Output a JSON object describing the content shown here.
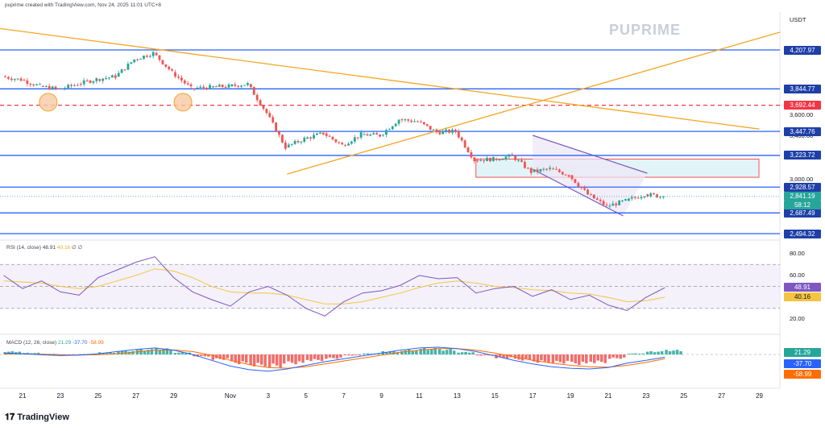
{
  "header": {
    "text": "puprime created with TradingView.com, Nov 24, 2025 11:01 UTC+8"
  },
  "watermark": {
    "brand": "PUPRIME"
  },
  "footer": {
    "brand": "TradingView"
  },
  "currency": "USDT",
  "colors": {
    "up": "#26a69a",
    "down": "#ef5350",
    "level_blue": "#2962ff",
    "level_red": "#f23645",
    "trend_orange": "#f5a623",
    "channel": "#7e57c2",
    "rsi": "#7e57c2",
    "rsi_ma": "#f5c542",
    "macd": "#2962ff",
    "signal": "#ff6d00"
  },
  "chart_data": [
    {
      "type": "candlestick",
      "title": "",
      "x_ticks": [
        "21",
        "23",
        "25",
        "27",
        "29",
        "Nov",
        "3",
        "5",
        "7",
        "9",
        "11",
        "13",
        "15",
        "17",
        "19",
        "21",
        "23",
        "25",
        "27",
        "29"
      ],
      "x_dates": [
        "Oct 21",
        "Oct 23",
        "Oct 25",
        "Oct 27",
        "Oct 29",
        "Nov 1",
        "Nov 3",
        "Nov 5",
        "Nov 7",
        "Nov 9",
        "Nov 11",
        "Nov 13",
        "Nov 15",
        "Nov 17",
        "Nov 19",
        "Nov 21",
        "Nov 23",
        "Nov 25",
        "Nov 27",
        "Nov 29"
      ],
      "y_axis_labels": [
        "3,600.00",
        "3,400.00",
        "3,000.00"
      ],
      "close_path": [
        [
          "Oct 20",
          3960
        ],
        [
          "Oct 21",
          3930
        ],
        [
          "Oct 22",
          3870
        ],
        [
          "Oct 23",
          3840
        ],
        [
          "Oct 24",
          3890
        ],
        [
          "Oct 25",
          3935
        ],
        [
          "Oct 26",
          3960
        ],
        [
          "Oct 27",
          4120
        ],
        [
          "Oct 28",
          4180
        ],
        [
          "Oct 29",
          4000
        ],
        [
          "Oct 30",
          3850
        ],
        [
          "Oct 31",
          3860
        ],
        [
          "Nov 1",
          3870
        ],
        [
          "Nov 2",
          3890
        ],
        [
          "Nov 3",
          3620
        ],
        [
          "Nov 4",
          3300
        ],
        [
          "Nov 5",
          3380
        ],
        [
          "Nov 6",
          3430
        ],
        [
          "Nov 7",
          3320
        ],
        [
          "Nov 8",
          3420
        ],
        [
          "Nov 9",
          3410
        ],
        [
          "Nov 10",
          3560
        ],
        [
          "Nov 11",
          3540
        ],
        [
          "Nov 12",
          3440
        ],
        [
          "Nov 13",
          3450
        ],
        [
          "Nov 14",
          3180
        ],
        [
          "Nov 15",
          3190
        ],
        [
          "Nov 16",
          3220
        ],
        [
          "Nov 17",
          3070
        ],
        [
          "Nov 18",
          3100
        ],
        [
          "Nov 19",
          3040
        ],
        [
          "Nov 20",
          2860
        ],
        [
          "Nov 21",
          2750
        ],
        [
          "Nov 22",
          2800
        ],
        [
          "Nov 23",
          2860
        ],
        [
          "Nov 24",
          2841.19
        ]
      ],
      "horizontal_levels": [
        {
          "value": "4,207.97",
          "style": "solid",
          "color": "blue"
        },
        {
          "value": "3,844.77",
          "style": "solid",
          "color": "blue"
        },
        {
          "value": "3,692.44",
          "style": "dashed",
          "color": "red"
        },
        {
          "value": "3,447.76",
          "style": "solid",
          "color": "blue"
        },
        {
          "value": "3,223.72",
          "style": "solid",
          "color": "blue"
        },
        {
          "value": "2,928.57",
          "style": "solid",
          "color": "blue"
        },
        {
          "value": "2,687.49",
          "style": "solid",
          "color": "blue"
        },
        {
          "value": "2,494.32",
          "style": "solid",
          "color": "blue"
        }
      ],
      "current_price": {
        "value": "2,841.19",
        "countdown": "58:12"
      },
      "trendlines": [
        {
          "name": "descending resistance",
          "from": [
            "Oct 18",
            4450
          ],
          "to": [
            "Nov 29",
            3470
          ]
        },
        {
          "name": "ascending support",
          "from": [
            "Nov 4",
            3050
          ],
          "to": [
            "Dec 1",
            4420
          ]
        }
      ],
      "zones": [
        {
          "name": "resistance zone",
          "from_date": "Nov 14",
          "to_date": "Nov 29",
          "y_top": 3190,
          "y_bottom": 3020
        }
      ],
      "channel": {
        "name": "descending channel",
        "start": "Nov 17",
        "end": "Nov 22"
      },
      "marked_points": [
        {
          "date": "Oct 23",
          "price": 3720
        },
        {
          "date": "Oct 30",
          "price": 3720
        }
      ]
    },
    {
      "type": "line",
      "title": "RSI (14, close)",
      "legend_values": [
        "48.91",
        "40.16",
        "∅",
        "∅"
      ],
      "y_axis_labels": [
        "80.00",
        "60.00",
        "20.00"
      ],
      "band": [
        30,
        70
      ],
      "series": [
        {
          "name": "RSI",
          "current": "48.91",
          "values": [
            60,
            48,
            55,
            45,
            42,
            58,
            65,
            72,
            77,
            58,
            45,
            38,
            32,
            45,
            50,
            42,
            30,
            23,
            36,
            44,
            46,
            51,
            60,
            57,
            58,
            44,
            48,
            50,
            41,
            47,
            38,
            42,
            33,
            28,
            40,
            48.91
          ]
        },
        {
          "name": "RSI MA",
          "current": "40.16",
          "values": [
            55,
            54,
            53,
            50,
            48,
            50,
            55,
            60,
            66,
            64,
            58,
            50,
            45,
            44,
            44,
            42,
            38,
            34,
            34,
            36,
            40,
            44,
            49,
            53,
            55,
            53,
            50,
            49,
            47,
            46,
            44,
            43,
            40,
            36,
            37,
            40.16
          ]
        }
      ]
    },
    {
      "type": "bar",
      "title": "MACD (12, 26, close)",
      "legend_values": [
        "21.29",
        "-37.70",
        "-58.99"
      ],
      "current_labels": [
        "21.29",
        "-37.70",
        "-58.99"
      ],
      "histogram": [
        15,
        8,
        3,
        -5,
        2,
        10,
        18,
        25,
        28,
        10,
        -10,
        -25,
        -45,
        -55,
        -60,
        -45,
        -30,
        -20,
        -5,
        5,
        15,
        22,
        30,
        25,
        12,
        -5,
        -18,
        -28,
        -38,
        -42,
        -48,
        -40,
        -20,
        5,
        15,
        21.29
      ],
      "series": [
        {
          "name": "MACD",
          "values": [
            20,
            10,
            -5,
            -15,
            -8,
            10,
            40,
            70,
            90,
            60,
            0,
            -80,
            -160,
            -210,
            -230,
            -200,
            -150,
            -100,
            -60,
            -20,
            20,
            60,
            90,
            100,
            80,
            40,
            -20,
            -80,
            -130,
            -170,
            -190,
            -200,
            -180,
            -120,
            -80,
            -37.7
          ]
        },
        {
          "name": "Signal",
          "values": [
            10,
            8,
            2,
            -5,
            -8,
            -3,
            10,
            35,
            60,
            62,
            40,
            -10,
            -80,
            -140,
            -180,
            -190,
            -170,
            -130,
            -90,
            -50,
            -10,
            30,
            60,
            80,
            80,
            60,
            20,
            -30,
            -80,
            -120,
            -150,
            -170,
            -175,
            -150,
            -110,
            -58.99
          ]
        }
      ]
    }
  ]
}
